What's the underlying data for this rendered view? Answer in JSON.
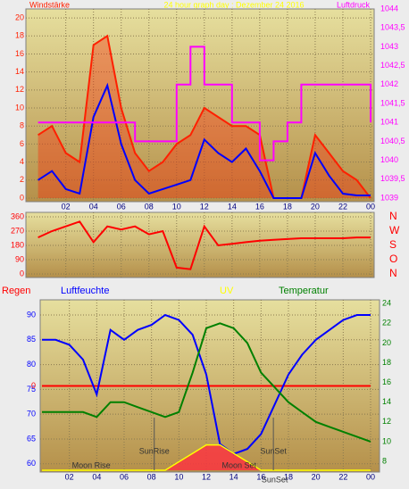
{
  "chart_data": [
    {
      "type": "line",
      "title": "24 hour graph day : Dezember 24 2016",
      "ylabel": "Windstärke",
      "y2label": "Luftdruck",
      "x": [
        0,
        1,
        2,
        3,
        4,
        5,
        6,
        7,
        8,
        9,
        10,
        11,
        12,
        13,
        14,
        15,
        16,
        17,
        18,
        19,
        20,
        21,
        22,
        23,
        24
      ],
      "xlim": [
        -0.75,
        24
      ],
      "xticks": [
        {
          "value": 2,
          "label": "02"
        },
        {
          "value": 4,
          "label": "04"
        },
        {
          "value": 6,
          "label": "06"
        },
        {
          "value": 8,
          "label": "08"
        },
        10,
        12,
        14,
        16,
        18,
        20,
        22,
        {
          "value": 24,
          "label": "00"
        }
      ],
      "ylim": [
        0,
        21
      ],
      "yticks": [
        0,
        2,
        4,
        6,
        8,
        10,
        12,
        14,
        16,
        18,
        20
      ],
      "y2lim": [
        1039,
        1044
      ],
      "y2ticks": [
        1039,
        {
          "value": 1039.5,
          "label": "1039,5"
        },
        1040,
        {
          "value": 1040.5,
          "label": "1040,5"
        },
        1041,
        {
          "value": 1041.5,
          "label": "1041,5"
        },
        1042,
        {
          "value": 1042.5,
          "label": "1042,5"
        },
        1043,
        {
          "value": 1043.5,
          "label": "1043,5"
        },
        1044
      ],
      "grid": true,
      "series": [
        {
          "color": "#ff2000",
          "fill": true,
          "values": [
            7,
            8,
            5,
            4,
            17,
            18,
            10,
            5,
            3,
            4,
            6,
            7,
            10,
            9,
            8,
            8,
            7,
            0,
            0,
            0,
            7,
            5,
            3,
            2,
            0
          ]
        },
        {
          "color": "#0000ff",
          "values": [
            2,
            3,
            1,
            0.5,
            9,
            12.5,
            6,
            2,
            0.5,
            1,
            1.5,
            2,
            6.5,
            5,
            4,
            5.5,
            3,
            0,
            0,
            0,
            5,
            2.5,
            0.5,
            0.3,
            0.3
          ]
        },
        {
          "color": "#ff00ff",
          "axis": "y2",
          "step": true,
          "values": [
            1041,
            1041,
            1041,
            1041,
            1041,
            1041,
            1041,
            1040.5,
            1040.5,
            1040.5,
            1042,
            1043,
            1042,
            1042,
            1041,
            1041,
            1040,
            1040.5,
            1041,
            1042,
            1042,
            1042,
            1042,
            1042,
            1041
          ]
        }
      ]
    },
    {
      "type": "line",
      "x": [
        0,
        1,
        2,
        3,
        4,
        5,
        6,
        7,
        8,
        9,
        10,
        11,
        12,
        13,
        14,
        15,
        16,
        17,
        18,
        19,
        20,
        21,
        22,
        23,
        24
      ],
      "xlim": [
        -0.75,
        24
      ],
      "ylim": [
        0,
        360
      ],
      "yticks": [
        0,
        90,
        180,
        270,
        360
      ],
      "y2ticks": [
        {
          "value": 360,
          "label": "N"
        },
        {
          "value": 270,
          "label": "W"
        },
        {
          "value": 180,
          "label": "S"
        },
        {
          "value": 90,
          "label": "O"
        },
        {
          "value": 0,
          "label": "N"
        }
      ],
      "grid": true,
      "series": [
        {
          "color": "#ff0000",
          "values": [
            230,
            270,
            300,
            330,
            200,
            300,
            280,
            300,
            250,
            270,
            40,
            30,
            300,
            180,
            190,
            200,
            210,
            215,
            220,
            225,
            225,
            225,
            225,
            230,
            230
          ]
        }
      ]
    },
    {
      "type": "line",
      "x": [
        0,
        1,
        2,
        3,
        4,
        5,
        6,
        7,
        8,
        9,
        10,
        11,
        12,
        13,
        14,
        15,
        16,
        17,
        18,
        19,
        20,
        21,
        22,
        23,
        24
      ],
      "xlim": [
        0,
        24
      ],
      "xticks": [
        {
          "value": 2,
          "label": "02"
        },
        {
          "value": 4,
          "label": "04"
        },
        {
          "value": 6,
          "label": "06"
        },
        {
          "value": 8,
          "label": "08"
        },
        10,
        12,
        14,
        16,
        18,
        20,
        22,
        {
          "value": 24,
          "label": "00"
        }
      ],
      "ylim": [
        58.7,
        92.7
      ],
      "yticks": [
        60,
        65,
        70,
        75,
        80,
        85,
        90
      ],
      "y2lim": [
        7.1,
        24.2
      ],
      "y2ticks": [
        8,
        10,
        12,
        14,
        16,
        18,
        20,
        22,
        24
      ],
      "grid": true,
      "series": [
        {
          "name": "Regen",
          "color": "#ff0000",
          "axis": "rain",
          "lim": [
            -1,
            1
          ],
          "ticks": [
            0
          ],
          "values": [
            0,
            0,
            0,
            0,
            0,
            0,
            0,
            0,
            0,
            0,
            0,
            0,
            0,
            0,
            0,
            0,
            0,
            0,
            0,
            0,
            0,
            0,
            0,
            0,
            0
          ]
        },
        {
          "name": "Luftfeuchte",
          "color": "#0000ff",
          "values": [
            85,
            85,
            84,
            81,
            74,
            87,
            85,
            87,
            88,
            90,
            89,
            86,
            78,
            64,
            62,
            63,
            66,
            72,
            78,
            82,
            85,
            87,
            89,
            90,
            90
          ]
        },
        {
          "name": "UV",
          "color": "#ffff00",
          "axis": "uv",
          "lim": [
            0,
            10
          ],
          "values": [
            0,
            0,
            0,
            0,
            0,
            0,
            0,
            0,
            0,
            0,
            0.5,
            1,
            1.5,
            1.5,
            1,
            0.5,
            0,
            0,
            0,
            0,
            0,
            0,
            0,
            0,
            0
          ]
        },
        {
          "name": "Temperatur",
          "color": "#008000",
          "axis": "y2",
          "values": [
            13,
            13,
            13,
            13,
            12.5,
            14,
            14,
            13.5,
            13,
            12.5,
            13,
            17,
            21.5,
            22,
            21.5,
            20,
            17,
            15.5,
            14,
            13,
            12,
            11.5,
            11,
            10.5,
            10
          ]
        }
      ],
      "annotations": [
        {
          "text": "Moon Rise",
          "x": 3.6
        },
        {
          "text": "SunRise",
          "x": 8.2
        },
        {
          "text": "Moon Set",
          "x": 14.4
        },
        {
          "text": "SunSet",
          "x": 16.9
        },
        {
          "text": "SunSet",
          "x": 17
        }
      ]
    }
  ]
}
